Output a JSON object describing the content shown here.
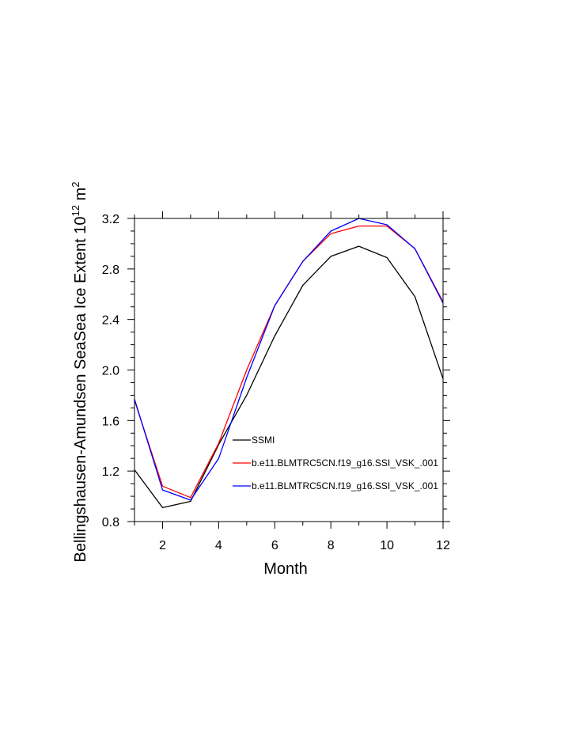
{
  "chart_data": {
    "type": "line",
    "xlabel": "Month",
    "ylabel": "Bellingshausen-Amundsen SeaSea Ice Extent 10",
    "ylabel_exponent": "12",
    "ylabel_unit": "m",
    "ylabel_unit_exponent": "2",
    "xlim": [
      1,
      12
    ],
    "ylim": [
      0.8,
      3.2
    ],
    "x_ticks": [
      2,
      4,
      6,
      8,
      10,
      12
    ],
    "x_tick_labels": [
      "2",
      "4",
      "6",
      "8",
      "10",
      "12"
    ],
    "y_ticks": [
      0.8,
      1.2,
      1.6,
      2.0,
      2.4,
      2.8,
      3.2
    ],
    "y_tick_labels": [
      "0.8",
      "1.2",
      "1.6",
      "2.0",
      "2.4",
      "2.8",
      "3.2"
    ],
    "grid": false,
    "legend_position": "inside-lower-right",
    "x": [
      1,
      2,
      3,
      4,
      5,
      6,
      7,
      8,
      9,
      10,
      11,
      12
    ],
    "series": [
      {
        "name": "SSMI",
        "color": "#000000",
        "values": [
          1.21,
          0.91,
          0.96,
          1.41,
          1.8,
          2.27,
          2.67,
          2.9,
          2.98,
          2.89,
          2.58,
          1.93
        ]
      },
      {
        "name": "b.e11.BLMTRC5CN.f19_g16.SSI_VSK_.001",
        "color": "#ff0000",
        "values": [
          1.76,
          1.08,
          0.99,
          1.42,
          2.0,
          2.51,
          2.86,
          3.08,
          3.14,
          3.14,
          2.96,
          2.54
        ]
      },
      {
        "name": "b.e11.BLMTRC5CN.f19_g16.SSI_VSK_.001",
        "color": "#0000ff",
        "values": [
          1.77,
          1.05,
          0.97,
          1.3,
          1.94,
          2.51,
          2.86,
          3.1,
          3.2,
          3.15,
          2.96,
          2.53
        ]
      }
    ]
  }
}
